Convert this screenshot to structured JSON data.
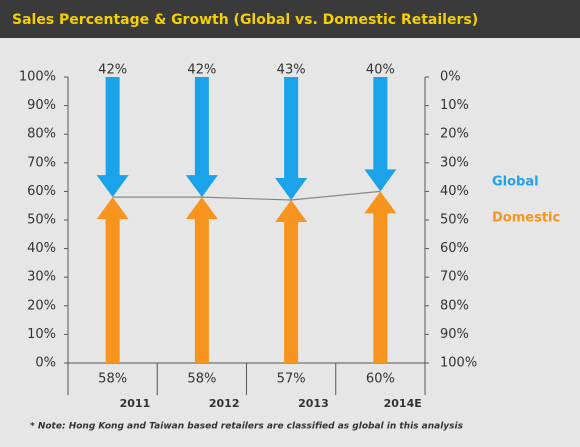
{
  "chart_data": {
    "type": "arrow-bar",
    "title": "Sales Percentage & Growth (Global vs. Domestic Retailers)",
    "note": "* Note: Hong Kong and Taiwan based retailers are classified as global in this analysis",
    "categories": [
      "2011",
      "2012",
      "2013",
      "2014E"
    ],
    "series": [
      {
        "name": "Global",
        "color": "#1aa3e8",
        "axis": "y2",
        "values": [
          42,
          42,
          43,
          40
        ],
        "value_labels": [
          "42%",
          "42%",
          "43%",
          "40%"
        ]
      },
      {
        "name": "Domestic",
        "color": "#f7941d",
        "values": [
          58,
          58,
          57,
          60
        ],
        "value_labels": [
          "58%",
          "58%",
          "57%",
          "60%"
        ]
      }
    ],
    "ylim": [
      0,
      100
    ],
    "yticks": [
      {
        "value": 0,
        "label": "0%"
      },
      {
        "value": 10,
        "label": "10%"
      },
      {
        "value": 20,
        "label": "20%"
      },
      {
        "value": 30,
        "label": "30%"
      },
      {
        "value": 40,
        "label": "40%"
      },
      {
        "value": 50,
        "label": "50%"
      },
      {
        "value": 60,
        "label": "60%"
      },
      {
        "value": 70,
        "label": "70%"
      },
      {
        "value": 80,
        "label": "80%"
      },
      {
        "value": 90,
        "label": "90%"
      },
      {
        "value": 100,
        "label": "100%"
      }
    ],
    "y2lim": [
      100,
      0
    ],
    "y2ticks": [
      {
        "value": 0,
        "label": "0%"
      },
      {
        "value": 10,
        "label": "10%"
      },
      {
        "value": 20,
        "label": "20%"
      },
      {
        "value": 30,
        "label": "30%"
      },
      {
        "value": 40,
        "label": "40%"
      },
      {
        "value": 50,
        "label": "50%"
      },
      {
        "value": 60,
        "label": "60%"
      },
      {
        "value": 70,
        "label": "70%"
      },
      {
        "value": 80,
        "label": "80%"
      },
      {
        "value": 90,
        "label": "90%"
      },
      {
        "value": 100,
        "label": "100%"
      }
    ],
    "legend": "right",
    "line_color": "#888888"
  }
}
